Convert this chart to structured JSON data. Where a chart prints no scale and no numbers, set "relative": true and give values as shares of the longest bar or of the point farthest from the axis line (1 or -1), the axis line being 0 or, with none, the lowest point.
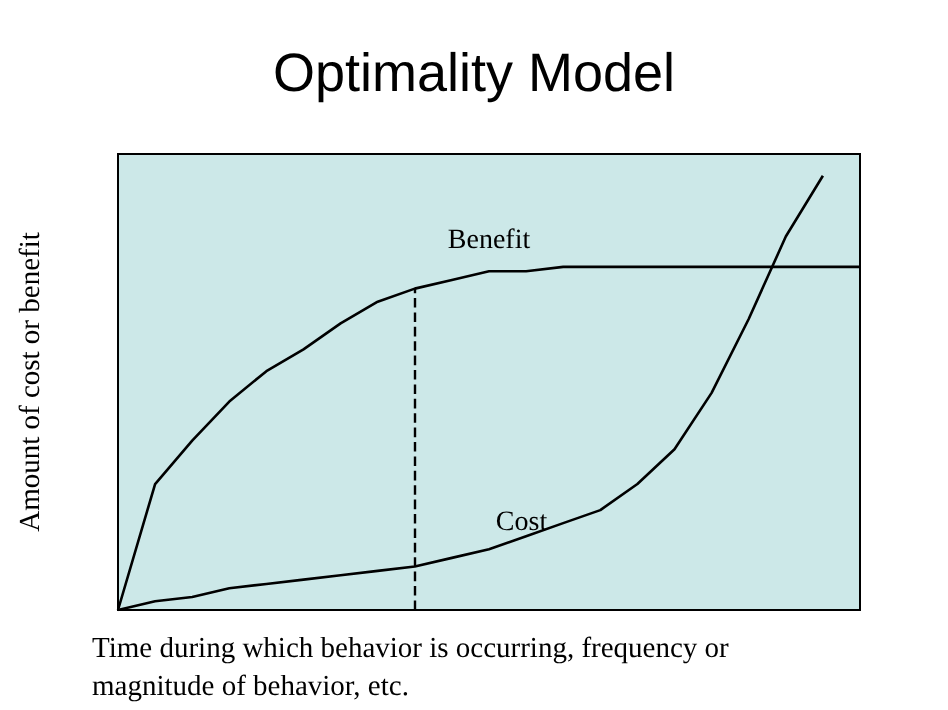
{
  "chart_data": {
    "type": "line",
    "title": "Optimality Model",
    "xlabel": "Time during which behavior is occurring, frequency or\nmagnitude of behavior, etc.",
    "ylabel": "Amount of cost or benefit",
    "relative": true,
    "legend": false,
    "marker": "none",
    "grid": false,
    "categories": [
      null,
      null,
      null,
      null,
      null,
      null,
      null,
      null,
      null,
      null,
      null,
      null,
      null,
      null,
      null,
      null,
      null,
      null,
      null,
      null,
      null
    ],
    "series": [
      {
        "name": "Benefit",
        "color": "#000000",
        "values": [
          0,
          0.29,
          0.39,
          0.48,
          0.55,
          0.6,
          0.66,
          0.71,
          0.74,
          0.76,
          0.78,
          0.78,
          0.79,
          0.79,
          0.79,
          0.79,
          0.79,
          0.79,
          0.79,
          0.79,
          0.79
        ]
      },
      {
        "name": "Cost",
        "color": "#000000",
        "values": [
          0,
          0.02,
          0.03,
          0.05,
          0.06,
          0.07,
          0.08,
          0.09,
          0.1,
          0.12,
          0.14,
          0.17,
          0.2,
          0.23,
          0.29,
          0.37,
          0.5,
          0.67,
          0.86,
          1,
          null
        ]
      }
    ]
  }
}
